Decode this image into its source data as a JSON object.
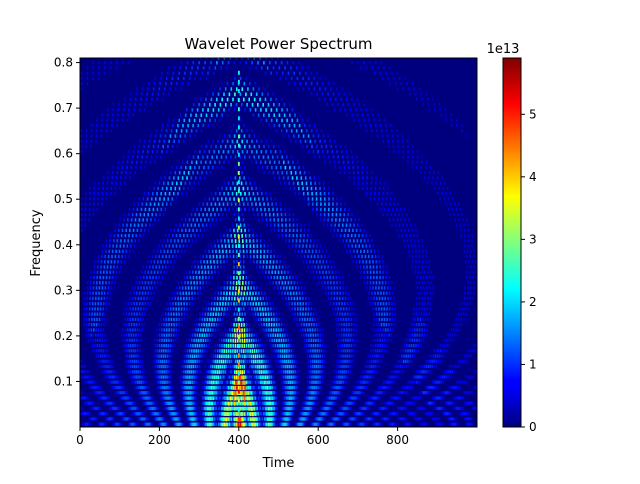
{
  "chart_data": {
    "type": "heatmap",
    "title": "Wavelet Power Spectrum",
    "xlabel": "Time",
    "ylabel": "Frequency",
    "xlim": [
      0,
      1000
    ],
    "ylim": [
      0,
      0.81
    ],
    "x_ticks": [
      0,
      200,
      400,
      600,
      800
    ],
    "y_ticks": [
      0.1,
      0.2,
      0.3,
      0.4,
      0.5,
      0.6,
      0.7,
      0.8
    ],
    "colormap": "jet",
    "colorbar": {
      "min": 0,
      "max": 5.9,
      "ticks": [
        0,
        1,
        2,
        3,
        4,
        5
      ],
      "multiplier_label": "1e13"
    },
    "description_features": {
      "peak_time": 400,
      "peak_power_x1e13": 5.9
    }
  }
}
